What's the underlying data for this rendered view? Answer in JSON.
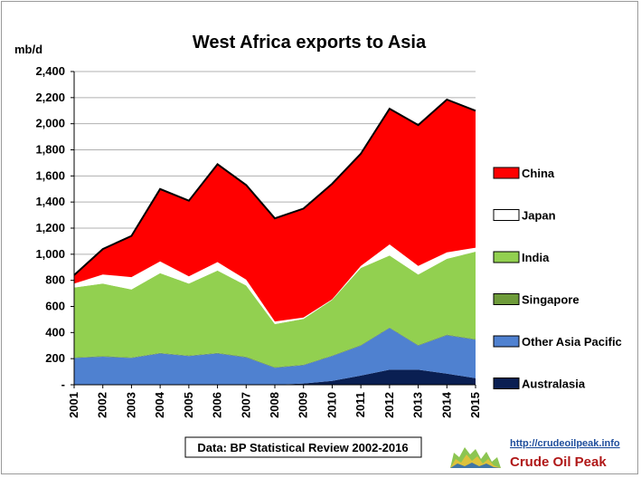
{
  "chart_data": {
    "type": "area",
    "stacked": true,
    "title": "West Africa exports to Asia",
    "ylabel": "mb/d",
    "xlabel": "",
    "x": [
      "2001",
      "2002",
      "2003",
      "2004",
      "2005",
      "2006",
      "2007",
      "2008",
      "2009",
      "2010",
      "2011",
      "2012",
      "2013",
      "2014",
      "2015"
    ],
    "ylim": [
      0,
      2400
    ],
    "yticks": [
      "-",
      "200",
      "400",
      "600",
      "800",
      "1,000",
      "1,200",
      "1,400",
      "1,600",
      "1,800",
      "2,000",
      "2,200",
      "2,400"
    ],
    "ytick_values": [
      0,
      200,
      400,
      600,
      800,
      1000,
      1200,
      1400,
      1600,
      1800,
      2000,
      2200,
      2400
    ],
    "grid": "horizontal",
    "legend_position": "right",
    "series": [
      {
        "name": "Australasia",
        "color": "#0a1f52",
        "values": [
          0,
          0,
          0,
          0,
          0,
          0,
          0,
          0,
          10,
          30,
          70,
          115,
          115,
          85,
          50
        ]
      },
      {
        "name": "Other Asia Pacific",
        "color": "#4f81d0",
        "values": [
          205,
          215,
          205,
          240,
          220,
          240,
          210,
          130,
          140,
          190,
          230,
          320,
          185,
          295,
          295
        ]
      },
      {
        "name": "Singapore",
        "color": "#6e9b3a",
        "values": [
          5,
          5,
          5,
          5,
          5,
          5,
          5,
          5,
          5,
          5,
          5,
          5,
          5,
          5,
          5
        ]
      },
      {
        "name": "India",
        "color": "#92d050",
        "values": [
          535,
          555,
          520,
          610,
          550,
          630,
          545,
          330,
          350,
          425,
          590,
          550,
          540,
          580,
          670
        ]
      },
      {
        "name": "Japan",
        "color": "#ffffff",
        "values": [
          30,
          70,
          95,
          90,
          55,
          65,
          45,
          20,
          10,
          5,
          15,
          85,
          65,
          50,
          30
        ]
      },
      {
        "name": "China",
        "color": "#ff0000",
        "values": [
          65,
          195,
          315,
          555,
          580,
          750,
          725,
          790,
          835,
          885,
          860,
          1040,
          1080,
          1170,
          1050
        ]
      }
    ],
    "legend_order": [
      "China",
      "Japan",
      "India",
      "Singapore",
      "Other Asia Pacific",
      "Australasia"
    ]
  },
  "source_note": "Data: BP Statistical Review 2002-2016",
  "branding": {
    "url": "http://crudeoilpeak.info",
    "name": "Crude Oil Peak"
  }
}
